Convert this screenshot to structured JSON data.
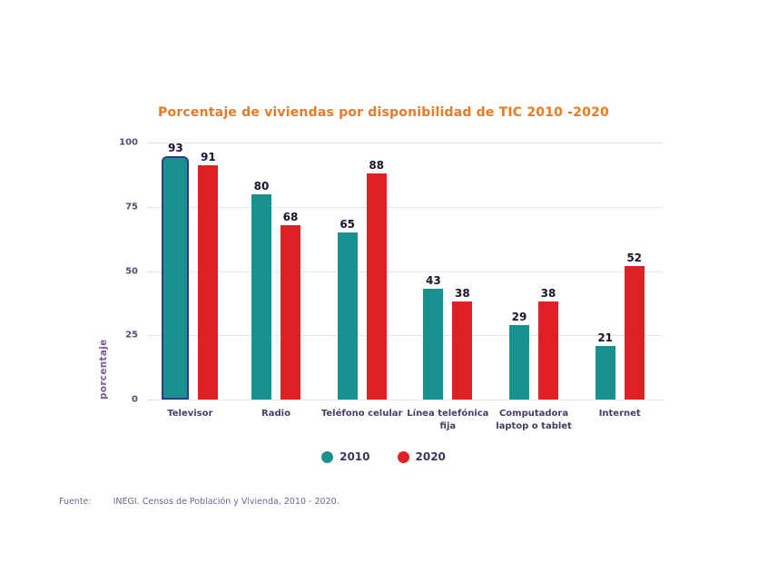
{
  "title": "Porcentaje de viviendas por disponibilidad de TIC 2010 -2020",
  "chart_data": {
    "type": "bar",
    "title": "Porcentaje de viviendas por disponibilidad de TIC 2010 -2020",
    "xlabel": "",
    "ylabel": "porcentaje",
    "ylim": [
      0,
      100
    ],
    "yticks": [
      0,
      25,
      50,
      75,
      100
    ],
    "grid": true,
    "legend_position": "bottom",
    "categories": [
      "Televisor",
      "Radio",
      "Teléfono celular",
      "Línea telefónica\nfija",
      "Computadora\nlaptop o tablet",
      "Internet"
    ],
    "series": [
      {
        "name": "2010",
        "color": "#19918e",
        "values": [
          93,
          80,
          65,
          43,
          29,
          21
        ]
      },
      {
        "name": "2020",
        "color": "#e11f26",
        "values": [
          91,
          68,
          88,
          38,
          38,
          52
        ]
      }
    ],
    "highlight": {
      "category": "Televisor",
      "series": "2010"
    }
  },
  "source": {
    "label": "Fuente:",
    "text": "INEGI. Censos de Población y Vivienda, 2010 - 2020."
  },
  "colors": {
    "title": "#ed7a22",
    "teal_2010": "#19918e",
    "red_2020": "#e11f26",
    "highlight_outline": "#2e3a8c",
    "value_label": "#17152b",
    "category_label": "#443e62",
    "ytick_label": "#554d70",
    "y_axis_title": "#7a5a9b",
    "legend_label": "#3b3660",
    "source_text": "#6e6688",
    "gridline": "#e2e2e6"
  }
}
